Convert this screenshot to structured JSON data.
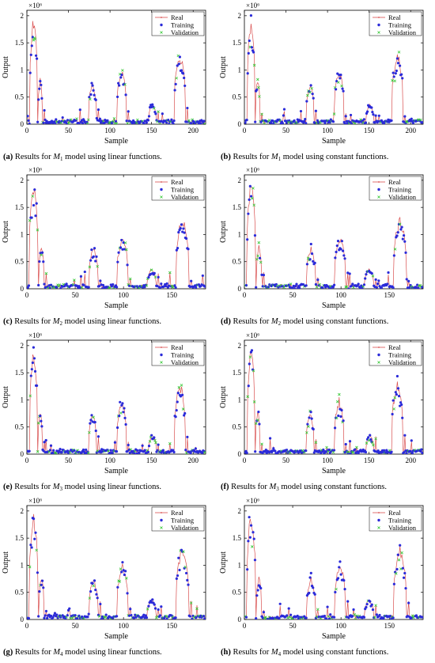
{
  "chart_data": [
    {
      "id": "a",
      "type": "line",
      "caption": {
        "tag": "(a)",
        "pre": "Results for",
        "model": "M",
        "sub": "1",
        "post": "model using linear functions."
      },
      "xlabel": "Sample",
      "ylabel": "Output",
      "exponent": "×10⁶",
      "xlim": [
        0,
        215
      ],
      "xticks": [
        0,
        50,
        100,
        150,
        200
      ],
      "ylim": [
        0,
        2.1
      ],
      "yticks": [
        0,
        0.5,
        1,
        1.5,
        2
      ],
      "peaks": [
        [
          7,
          1.95,
          4
        ],
        [
          15,
          0.85,
          2
        ],
        [
          78,
          0.75,
          4
        ],
        [
          113,
          1.0,
          5
        ],
        [
          150,
          0.36,
          4
        ],
        [
          183,
          1.3,
          6
        ]
      ],
      "series": [
        {
          "name": "Real",
          "color": "#d94f4f"
        },
        {
          "name": "Training",
          "color": "#2b2bd9"
        },
        {
          "name": "Validation",
          "color": "#36c836"
        }
      ]
    },
    {
      "id": "b",
      "type": "line",
      "caption": {
        "tag": "(b)",
        "pre": "Results for",
        "model": "M",
        "sub": "1",
        "post": "model using constant functions."
      },
      "xlabel": "Sample",
      "ylabel": "Output",
      "exponent": "×10⁶",
      "xlim": [
        0,
        215
      ],
      "xticks": [
        0,
        50,
        100,
        150,
        200
      ],
      "ylim": [
        0,
        2.1
      ],
      "yticks": [
        0,
        0.5,
        1,
        1.5,
        2
      ],
      "peaks": [
        [
          7,
          1.95,
          4
        ],
        [
          15,
          0.85,
          2
        ],
        [
          78,
          0.75,
          4
        ],
        [
          113,
          1.0,
          5
        ],
        [
          150,
          0.36,
          4
        ],
        [
          183,
          1.3,
          6
        ]
      ],
      "series": [
        {
          "name": "Real",
          "color": "#d94f4f"
        },
        {
          "name": "Training",
          "color": "#2b2bd9"
        },
        {
          "name": "Validation",
          "color": "#36c836"
        }
      ]
    },
    {
      "id": "c",
      "type": "line",
      "caption": {
        "tag": "(c)",
        "pre": "Results for",
        "model": "M",
        "sub": "2",
        "post": "model using linear functions."
      },
      "xlabel": "Sample",
      "ylabel": "Output",
      "exponent": "×10⁶",
      "xlim": [
        0,
        185
      ],
      "xticks": [
        0,
        50,
        100,
        150
      ],
      "ylim": [
        0,
        2.1
      ],
      "yticks": [
        0,
        0.5,
        1,
        1.5,
        2
      ],
      "peaks": [
        [
          6,
          1.95,
          4
        ],
        [
          14,
          0.8,
          2
        ],
        [
          68,
          0.75,
          4
        ],
        [
          98,
          0.95,
          5
        ],
        [
          128,
          0.36,
          4
        ],
        [
          160,
          1.3,
          6
        ]
      ],
      "series": [
        {
          "name": "Real",
          "color": "#d94f4f"
        },
        {
          "name": "Training",
          "color": "#2b2bd9"
        },
        {
          "name": "Validation",
          "color": "#36c836"
        }
      ]
    },
    {
      "id": "d",
      "type": "line",
      "caption": {
        "tag": "(d)",
        "pre": "Results for",
        "model": "M",
        "sub": "2",
        "post": "model using constant functions."
      },
      "xlabel": "Sample",
      "ylabel": "Output",
      "exponent": "×10⁶",
      "xlim": [
        0,
        185
      ],
      "xticks": [
        0,
        50,
        100,
        150
      ],
      "ylim": [
        0,
        2.1
      ],
      "yticks": [
        0,
        0.5,
        1,
        1.5,
        2
      ],
      "peaks": [
        [
          6,
          1.95,
          4
        ],
        [
          14,
          0.8,
          2
        ],
        [
          68,
          0.75,
          4
        ],
        [
          98,
          0.95,
          5
        ],
        [
          128,
          0.36,
          4
        ],
        [
          160,
          1.3,
          6
        ]
      ],
      "series": [
        {
          "name": "Real",
          "color": "#d94f4f"
        },
        {
          "name": "Training",
          "color": "#2b2bd9"
        },
        {
          "name": "Validation",
          "color": "#36c836"
        }
      ]
    },
    {
      "id": "e",
      "type": "line",
      "caption": {
        "tag": "(e)",
        "pre": "Results for",
        "model": "M",
        "sub": "3",
        "post": "model using linear functions."
      },
      "xlabel": "Sample",
      "ylabel": "Output",
      "exponent": "×10⁶",
      "xlim": [
        0,
        215
      ],
      "xticks": [
        0,
        50,
        100,
        150,
        200
      ],
      "ylim": [
        0,
        2.1
      ],
      "yticks": [
        0,
        0.5,
        1,
        1.5,
        2
      ],
      "peaks": [
        [
          7,
          1.95,
          4
        ],
        [
          15,
          0.8,
          2
        ],
        [
          78,
          0.75,
          4
        ],
        [
          113,
          1.0,
          5
        ],
        [
          150,
          0.36,
          4
        ],
        [
          183,
          1.3,
          6
        ]
      ],
      "series": [
        {
          "name": "Real",
          "color": "#d94f4f"
        },
        {
          "name": "Training",
          "color": "#2b2bd9"
        },
        {
          "name": "Validation",
          "color": "#36c836"
        }
      ]
    },
    {
      "id": "f",
      "type": "line",
      "caption": {
        "tag": "(f)",
        "pre": "Results for",
        "model": "M",
        "sub": "3",
        "post": "model using constant functions."
      },
      "xlabel": "Sample",
      "ylabel": "Output",
      "exponent": "×10⁶",
      "xlim": [
        0,
        215
      ],
      "xticks": [
        0,
        50,
        100,
        150,
        200
      ],
      "ylim": [
        0,
        2.1
      ],
      "yticks": [
        0,
        0.5,
        1,
        1.5,
        2
      ],
      "peaks": [
        [
          7,
          1.95,
          4
        ],
        [
          15,
          0.8,
          2
        ],
        [
          78,
          0.75,
          4
        ],
        [
          113,
          1.0,
          5
        ],
        [
          150,
          0.36,
          4
        ],
        [
          183,
          1.3,
          6
        ]
      ],
      "series": [
        {
          "name": "Real",
          "color": "#d94f4f"
        },
        {
          "name": "Training",
          "color": "#2b2bd9"
        },
        {
          "name": "Validation",
          "color": "#36c836"
        }
      ]
    },
    {
      "id": "g",
      "type": "line",
      "caption": {
        "tag": "(g)",
        "pre": "Results for",
        "model": "M",
        "sub": "4",
        "post": "model using linear functions."
      },
      "xlabel": "Sample",
      "ylabel": "Output",
      "exponent": "×10⁶",
      "xlim": [
        0,
        185
      ],
      "xticks": [
        0,
        50,
        100,
        150
      ],
      "ylim": [
        0,
        2.1
      ],
      "yticks": [
        0,
        0.5,
        1,
        1.5,
        2
      ],
      "peaks": [
        [
          6,
          1.95,
          4
        ],
        [
          14,
          0.8,
          2
        ],
        [
          68,
          0.75,
          4
        ],
        [
          98,
          1.0,
          5
        ],
        [
          128,
          0.36,
          4
        ],
        [
          160,
          1.3,
          6
        ]
      ],
      "series": [
        {
          "name": "Real",
          "color": "#d94f4f"
        },
        {
          "name": "Training",
          "color": "#2b2bd9"
        },
        {
          "name": "Validation",
          "color": "#36c836"
        }
      ]
    },
    {
      "id": "h",
      "type": "line",
      "caption": {
        "tag": "(h)",
        "pre": "Results for",
        "model": "M",
        "sub": "4",
        "post": "model using constant functions."
      },
      "xlabel": "Sample",
      "ylabel": "Output",
      "exponent": "×10⁶",
      "xlim": [
        0,
        185
      ],
      "xticks": [
        0,
        50,
        100,
        150
      ],
      "ylim": [
        0,
        2.1
      ],
      "yticks": [
        0,
        0.5,
        1,
        1.5,
        2
      ],
      "peaks": [
        [
          6,
          1.95,
          4
        ],
        [
          14,
          0.8,
          2
        ],
        [
          68,
          0.75,
          4
        ],
        [
          98,
          1.0,
          5
        ],
        [
          128,
          0.36,
          4
        ],
        [
          160,
          1.3,
          6
        ]
      ],
      "series": [
        {
          "name": "Real",
          "color": "#d94f4f"
        },
        {
          "name": "Training",
          "color": "#2b2bd9"
        },
        {
          "name": "Validation",
          "color": "#36c836"
        }
      ]
    }
  ]
}
